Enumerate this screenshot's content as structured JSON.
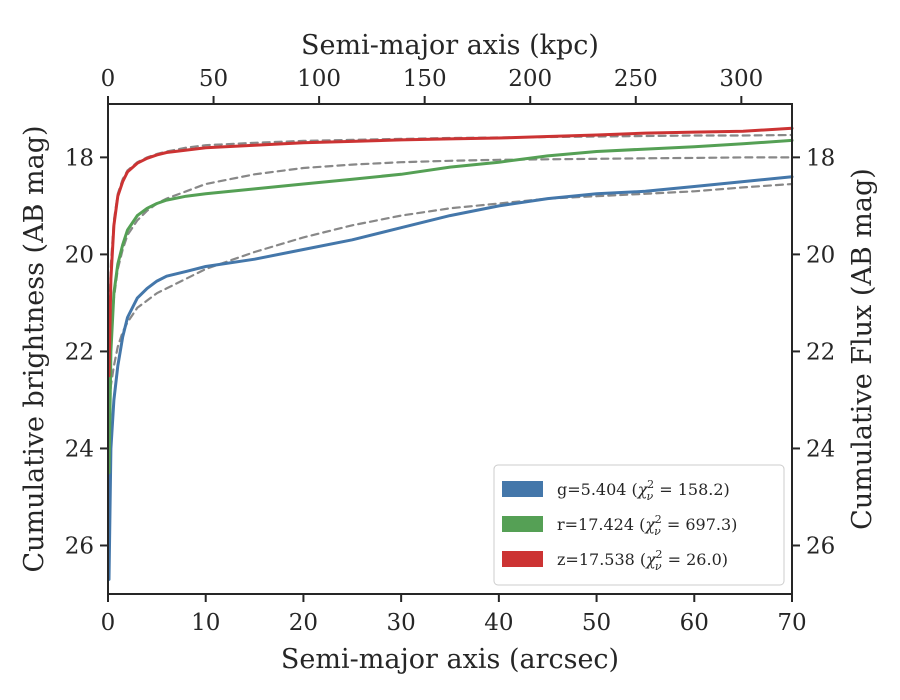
{
  "chart_data": {
    "type": "line",
    "xlabel": "Semi-major axis (arcsec)",
    "ylabel": "Cumulative brightness (AB mag)",
    "top_xlabel": "Semi-major axis (kpc)",
    "right_ylabel": "Cumulative Flux (AB mag)",
    "xlim": [
      0,
      70
    ],
    "ylim": [
      27.0,
      16.9
    ],
    "y_inverted": true,
    "top_xlim": [
      0,
      324
    ],
    "x_ticks": [
      "0",
      "10",
      "20",
      "30",
      "40",
      "50",
      "60",
      "70"
    ],
    "top_x_ticks": [
      "0",
      "50",
      "100",
      "150",
      "200",
      "250",
      "300"
    ],
    "y_ticks": [
      "18",
      "20",
      "22",
      "24",
      "26"
    ],
    "legend_position": "lower-right",
    "grid": false,
    "series": [
      {
        "name": "g",
        "legend": [
          "g=5.404 (",
          "χ",
          "ν",
          "2",
          " = 158.2)"
        ],
        "color": "#4477aa",
        "x": [
          0.1,
          0.3,
          0.6,
          1.0,
          1.5,
          2.0,
          3.0,
          4.0,
          5.0,
          6.0,
          8.0,
          10.0,
          15.0,
          20.0,
          25.0,
          30.0,
          35.0,
          40.0,
          45.0,
          50.0,
          55.0,
          60.0,
          65.0,
          70.0
        ],
        "y": [
          26.7,
          24.0,
          23.0,
          22.3,
          21.7,
          21.3,
          20.9,
          20.7,
          20.55,
          20.45,
          20.35,
          20.25,
          20.1,
          19.9,
          19.7,
          19.45,
          19.2,
          19.0,
          18.85,
          18.75,
          18.7,
          18.6,
          18.5,
          18.4
        ]
      },
      {
        "name": "g model",
        "color": "#888888",
        "dashed": true,
        "x": [
          0.1,
          0.3,
          0.6,
          1.0,
          1.5,
          2.0,
          3.0,
          4.0,
          5.0,
          6.0,
          8.0,
          10.0,
          15.0,
          20.0,
          25.0,
          30.0,
          35.0,
          40.0,
          45.0,
          50.0,
          55.0,
          60.0,
          65.0,
          70.0
        ],
        "y": [
          23.5,
          22.7,
          22.3,
          21.9,
          21.6,
          21.4,
          21.1,
          20.95,
          20.8,
          20.7,
          20.5,
          20.3,
          19.95,
          19.65,
          19.4,
          19.2,
          19.05,
          18.95,
          18.85,
          18.8,
          18.75,
          18.7,
          18.62,
          18.55
        ]
      },
      {
        "name": "r",
        "legend": [
          "r=17.424 (",
          "χ",
          "ν",
          "2",
          " = 697.3)"
        ],
        "color": "#55a055",
        "x": [
          0.1,
          0.3,
          0.6,
          1.0,
          1.5,
          2.0,
          3.0,
          4.0,
          5.0,
          6.0,
          8.0,
          10.0,
          15.0,
          20.0,
          25.0,
          30.0,
          35.0,
          40.0,
          45.0,
          50.0,
          55.0,
          60.0,
          65.0,
          70.0
        ],
        "y": [
          24.5,
          22.0,
          20.8,
          20.2,
          19.8,
          19.5,
          19.2,
          19.05,
          18.95,
          18.88,
          18.8,
          18.75,
          18.65,
          18.55,
          18.45,
          18.35,
          18.2,
          18.1,
          17.97,
          17.88,
          17.83,
          17.78,
          17.72,
          17.65
        ]
      },
      {
        "name": "r model",
        "color": "#888888",
        "dashed": true,
        "x": [
          0.1,
          0.3,
          0.6,
          1.0,
          1.5,
          2.0,
          3.0,
          4.0,
          5.0,
          6.0,
          8.0,
          10.0,
          15.0,
          20.0,
          25.0,
          30.0,
          35.0,
          40.0,
          45.0,
          50.0,
          55.0,
          60.0,
          65.0,
          70.0
        ],
        "y": [
          23.0,
          21.7,
          20.9,
          20.3,
          19.9,
          19.6,
          19.3,
          19.1,
          18.95,
          18.85,
          18.7,
          18.55,
          18.35,
          18.22,
          18.15,
          18.1,
          18.07,
          18.05,
          18.04,
          18.03,
          18.02,
          18.01,
          18.0,
          18.0
        ]
      },
      {
        "name": "z",
        "legend": [
          "z=17.538 (",
          "χ",
          "ν",
          "2",
          " = 26.0)"
        ],
        "color": "#cc3333",
        "x": [
          0.1,
          0.3,
          0.6,
          1.0,
          1.5,
          2.0,
          3.0,
          4.0,
          5.0,
          6.0,
          8.0,
          10.0,
          15.0,
          20.0,
          25.0,
          30.0,
          35.0,
          40.0,
          45.0,
          50.0,
          55.0,
          60.0,
          65.0,
          70.0
        ],
        "y": [
          22.5,
          20.5,
          19.4,
          18.8,
          18.5,
          18.3,
          18.12,
          18.02,
          17.95,
          17.9,
          17.85,
          17.8,
          17.75,
          17.7,
          17.67,
          17.64,
          17.62,
          17.6,
          17.57,
          17.54,
          17.5,
          17.48,
          17.46,
          17.4
        ]
      },
      {
        "name": "z model",
        "color": "#888888",
        "dashed": true,
        "x": [
          0.1,
          0.3,
          0.6,
          1.0,
          1.5,
          2.0,
          3.0,
          4.0,
          5.0,
          6.0,
          8.0,
          10.0,
          15.0,
          20.0,
          25.0,
          30.0,
          35.0,
          40.0,
          45.0,
          50.0,
          55.0,
          60.0,
          65.0,
          70.0
        ],
        "y": [
          21.5,
          20.2,
          19.3,
          18.75,
          18.45,
          18.27,
          18.1,
          18.0,
          17.93,
          17.88,
          17.8,
          17.75,
          17.7,
          17.66,
          17.64,
          17.62,
          17.6,
          17.59,
          17.58,
          17.57,
          17.56,
          17.55,
          17.55,
          17.54
        ]
      }
    ]
  }
}
